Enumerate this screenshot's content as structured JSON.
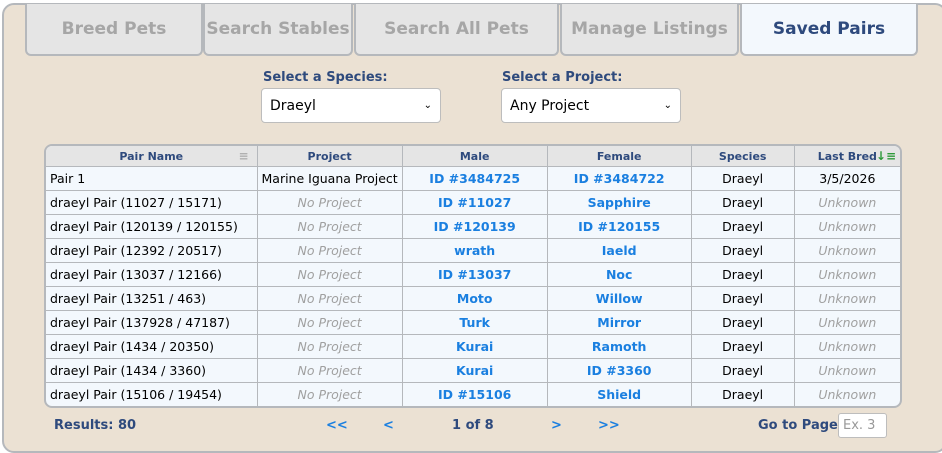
{
  "tabs": [
    {
      "label": "Breed Pets"
    },
    {
      "label": "Search Stables"
    },
    {
      "label": "Search All Pets"
    },
    {
      "label": "Manage Listings"
    },
    {
      "label": "Saved Pairs",
      "active": true
    }
  ],
  "filters": {
    "species_label": "Select a Species:",
    "species_value": "Draeyl",
    "project_label": "Select a Project:",
    "project_value": "Any Project"
  },
  "table": {
    "headers": [
      "Pair Name",
      "Project",
      "Male",
      "Female",
      "Species",
      "Last Bred"
    ],
    "rows": [
      [
        "Pair 1",
        "Marine Iguana Project",
        "ID #3484725",
        "ID #3484722",
        "Draeyl",
        "3/5/2026"
      ],
      [
        "draeyl Pair (11027 / 15171)",
        "No Project",
        "ID #11027",
        "Sapphire",
        "Draeyl",
        "Unknown"
      ],
      [
        "draeyl Pair (120139 / 120155)",
        "No Project",
        "ID #120139",
        "ID #120155",
        "Draeyl",
        "Unknown"
      ],
      [
        "draeyl Pair (12392 / 20517)",
        "No Project",
        "wrath",
        "Iaeld",
        "Draeyl",
        "Unknown"
      ],
      [
        "draeyl Pair (13037 / 12166)",
        "No Project",
        "ID #13037",
        "Noc",
        "Draeyl",
        "Unknown"
      ],
      [
        "draeyl Pair (13251 / 463)",
        "No Project",
        "Moto",
        "Willow",
        "Draeyl",
        "Unknown"
      ],
      [
        "draeyl Pair (137928 / 47187)",
        "No Project",
        "Turk",
        "Mirror",
        "Draeyl",
        "Unknown"
      ],
      [
        "draeyl Pair (1434 / 20350)",
        "No Project",
        "Kurai",
        "Ramoth",
        "Draeyl",
        "Unknown"
      ],
      [
        "draeyl Pair (1434 / 3360)",
        "No Project",
        "Kurai",
        "ID #3360",
        "Draeyl",
        "Unknown"
      ],
      [
        "draeyl Pair (15106 / 19454)",
        "No Project",
        "ID #15106",
        "Shield",
        "Draeyl",
        "Unknown"
      ]
    ]
  },
  "footer": {
    "results": "Results: 80",
    "first": "<<",
    "prev": "<",
    "page": "1 of 8",
    "next": ">",
    "last": ">>",
    "goto_label": "Go to Page:",
    "goto_placeholder": "Ex. 3"
  },
  "colors": {
    "accent": "#2e4a7d",
    "link": "#1a7fe0",
    "background": "#ebe1d3",
    "sort_active": "#2e9a3a"
  }
}
